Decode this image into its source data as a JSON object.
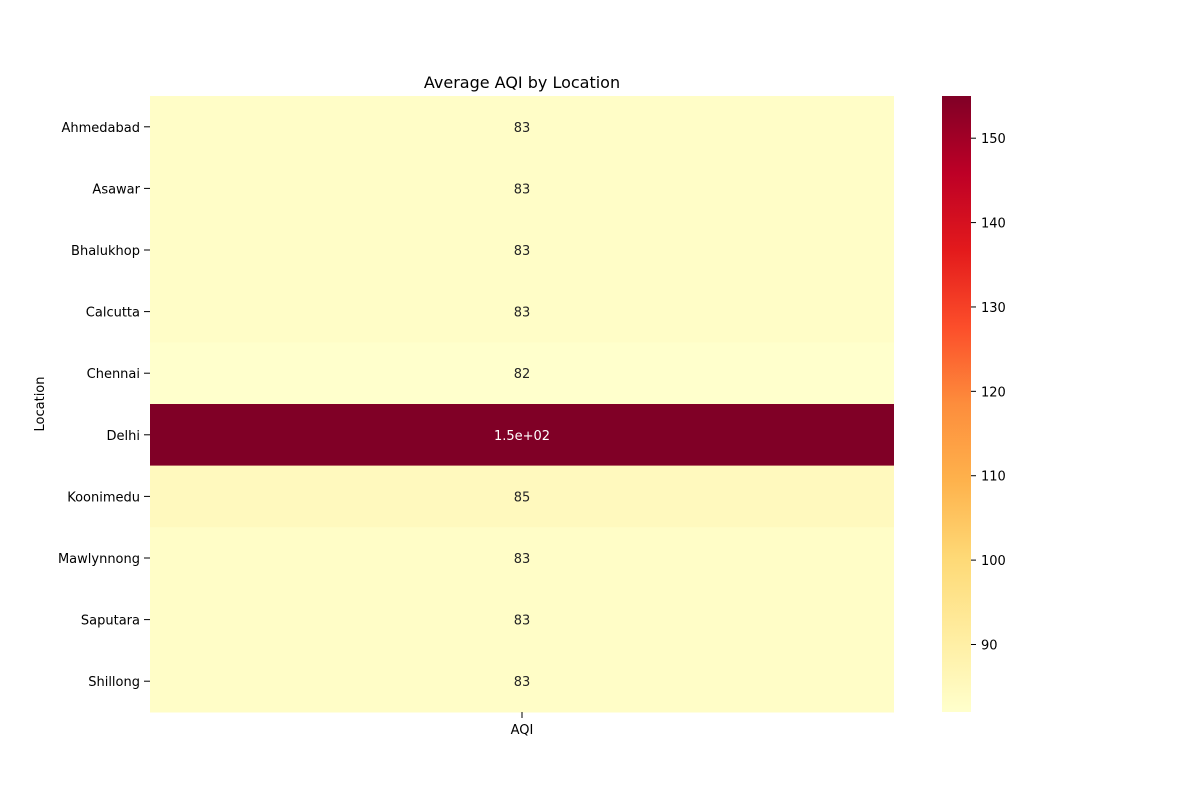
{
  "chart_data": {
    "type": "heatmap",
    "title": "Average AQI by Location",
    "xlabel": "",
    "ylabel": "Location",
    "x_categories": [
      "AQI"
    ],
    "y_categories": [
      "Ahmedabad",
      "Asawar",
      "Bhalukhop",
      "Calcutta",
      "Chennai",
      "Delhi",
      "Koonimedu",
      "Mawlynnong",
      "Saputara",
      "Shillong"
    ],
    "values": [
      83,
      83,
      83,
      83,
      82,
      155,
      85,
      83,
      83,
      83
    ],
    "annotations": [
      "83",
      "83",
      "83",
      "83",
      "82",
      "1.5e+02",
      "85",
      "83",
      "83",
      "83"
    ],
    "colorbar": {
      "min": 82,
      "max": 155,
      "ticks": [
        90,
        100,
        110,
        120,
        130,
        140,
        150
      ],
      "colormap": "YlOrRd",
      "placement": "right"
    },
    "grid": false
  }
}
